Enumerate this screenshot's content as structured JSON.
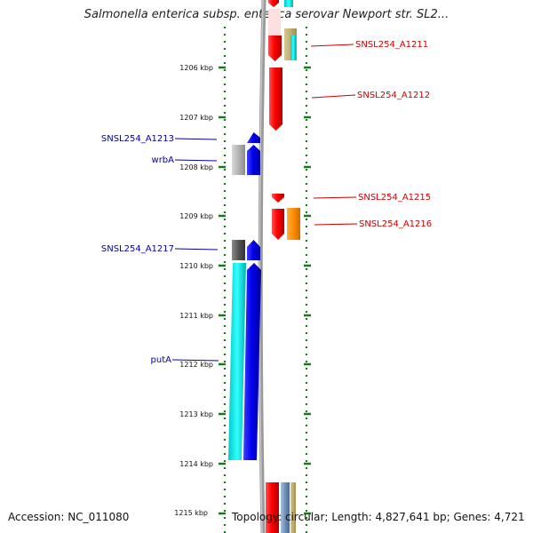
{
  "title": "Salmonella enterica subsp. enterica serovar Newport str. SL2...",
  "footer": {
    "accession": "Accession: NC_011080",
    "summary": "Topology: circular; Length: 4,827,641 bp; Genes: 4,721"
  },
  "ticks": [
    "1206 kbp",
    "1207 kbp",
    "1208 kbp",
    "1209 kbp",
    "1210 kbp",
    "1211 kbp",
    "1212 kbp",
    "1213 kbp",
    "1214 kbp",
    "1215 kbp"
  ],
  "colors": {
    "forward_cds": "#ff0000",
    "reverse_cds": "#0000ee",
    "forward_label": "#cc0000",
    "reverse_label": "#0000aa",
    "tick": "#1a7a1a",
    "backbone": "#8a8a8a",
    "orange_feature": "#ff8c00",
    "cyan_feature": "#00e6e6"
  },
  "genes": {
    "SNSL254_A1211": "SNSL254_A1211",
    "SNSL254_A1212": "SNSL254_A1212",
    "SNSL254_A1213": "SNSL254_A1213",
    "wrbA": "wrbA",
    "SNSL254_A1215": "SNSL254_A1215",
    "SNSL254_A1216": "SNSL254_A1216",
    "SNSL254_A1217": "SNSL254_A1217",
    "putA": "putA"
  }
}
